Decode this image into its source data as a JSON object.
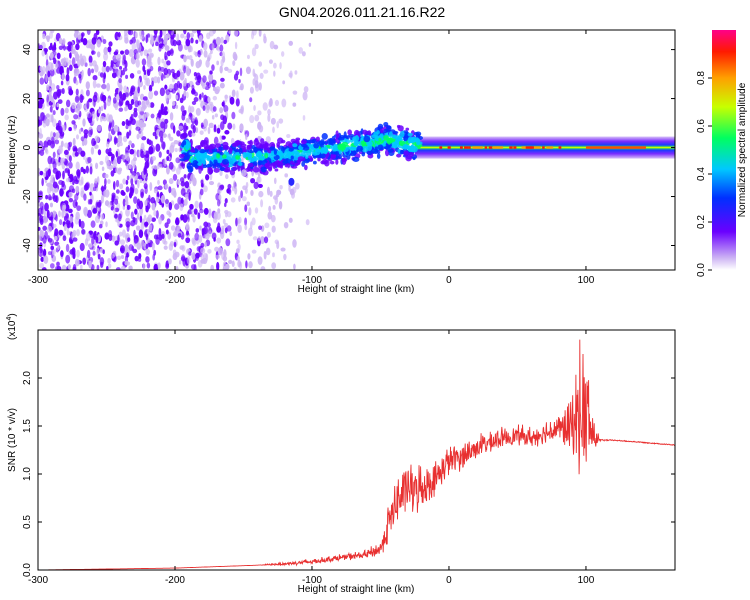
{
  "title": "GN04.2026.011.21.16.R22",
  "chart_data": [
    {
      "type": "heatmap",
      "name": "spectrogram",
      "xlabel": "Height of straight line (km)",
      "ylabel": "Frequency (Hz)",
      "xlim": [
        -300,
        165
      ],
      "ylim": [
        -50,
        48
      ],
      "xticks": [
        -300,
        -200,
        -100,
        0,
        100
      ],
      "yticks": [
        -40,
        -20,
        0,
        20,
        40
      ],
      "colorbar": {
        "label": "Normalized spectral amplitude",
        "range": [
          0,
          1
        ],
        "ticks": [
          0.0,
          0.2,
          0.4,
          0.6,
          0.8
        ]
      },
      "band": {
        "center_hz": [
          {
            "km": -190,
            "hz": -4
          },
          {
            "km": -150,
            "hz": -4
          },
          {
            "km": -120,
            "hz": -3
          },
          {
            "km": -100,
            "hz": -1
          },
          {
            "km": -80,
            "hz": 0
          },
          {
            "km": -60,
            "hz": 2
          },
          {
            "km": -40,
            "hz": 3
          },
          {
            "km": -25,
            "hz": 1
          },
          {
            "km": -10,
            "hz": 0
          },
          {
            "km": 100,
            "hz": 0
          },
          {
            "km": 165,
            "hz": 0
          }
        ],
        "peak_amplitude_range_km": [
          -10,
          100
        ]
      }
    },
    {
      "type": "line",
      "name": "snr",
      "xlabel": "Height of straight line (km)",
      "ylabel": "SNR (10 * v/v)",
      "yscale_label": "(x10",
      "yscale_exp": "4",
      "xlim": [
        -300,
        165
      ],
      "ylim": [
        0,
        2.5
      ],
      "xticks": [
        -300,
        -200,
        -100,
        0,
        100
      ],
      "yticks": [
        0.0,
        0.5,
        1.0,
        1.5,
        2.0
      ],
      "color": "#e83030",
      "series": [
        {
          "name": "SNR",
          "x": [
            -300,
            -250,
            -200,
            -180,
            -160,
            -140,
            -120,
            -100,
            -90,
            -80,
            -60,
            -50,
            -45,
            -40,
            -35,
            -30,
            -25,
            -20,
            -10,
            0,
            10,
            20,
            30,
            40,
            50,
            60,
            70,
            80,
            90,
            95,
            100,
            105,
            110,
            120,
            140,
            165
          ],
          "y": [
            0.0,
            0.01,
            0.02,
            0.03,
            0.04,
            0.05,
            0.06,
            0.08,
            0.1,
            0.12,
            0.15,
            0.2,
            0.4,
            0.6,
            0.7,
            0.8,
            0.75,
            0.8,
            0.9,
            1.1,
            1.15,
            1.25,
            1.3,
            1.35,
            1.38,
            1.35,
            1.4,
            1.45,
            1.4,
            1.5,
            1.45,
            1.35,
            1.35,
            1.35,
            1.33,
            1.3
          ],
          "noise": [
            0,
            0,
            0,
            0,
            0,
            0,
            0.03,
            0.05,
            0.05,
            0.06,
            0.08,
            0.15,
            0.35,
            0.45,
            0.5,
            0.5,
            0.45,
            0.4,
            0.3,
            0.3,
            0.25,
            0.22,
            0.2,
            0.18,
            0.18,
            0.18,
            0.2,
            0.25,
            0.6,
            1.1,
            1.2,
            0.4,
            0.02,
            0.01,
            0.01,
            0.01
          ]
        }
      ]
    }
  ]
}
